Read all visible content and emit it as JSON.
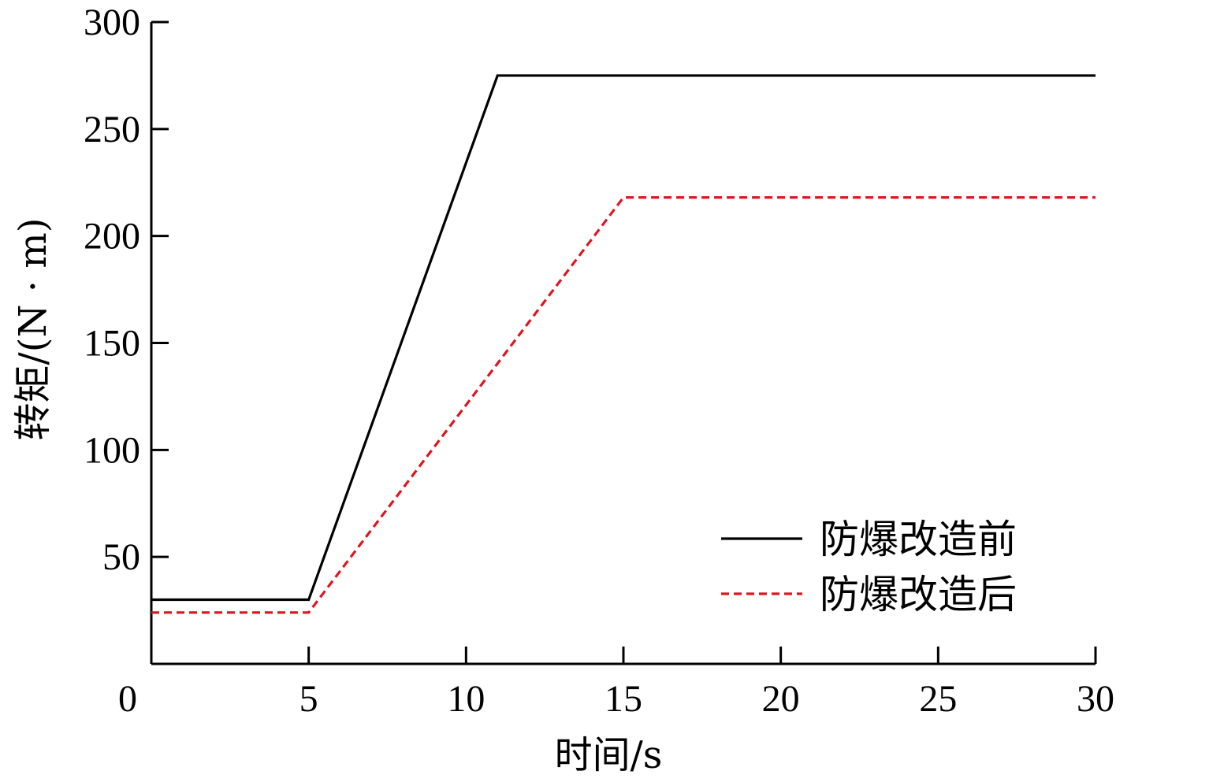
{
  "chart_data": {
    "type": "line",
    "xlabel": "时间/s",
    "ylabel": "转矩/(N · m)",
    "xlim": [
      0,
      30
    ],
    "ylim": [
      0,
      300
    ],
    "x_ticks": [
      0,
      5,
      10,
      15,
      20,
      25,
      30
    ],
    "y_ticks": [
      50,
      100,
      150,
      200,
      250,
      300
    ],
    "grid": false,
    "legend_position": "bottom-right",
    "series": [
      {
        "name": "防爆改造前",
        "color": "#000000",
        "style": "solid",
        "x": [
          0,
          5,
          11,
          30
        ],
        "y": [
          30,
          30,
          275,
          275
        ]
      },
      {
        "name": "防爆改造后",
        "color": "#e0141e",
        "style": "dashed",
        "x": [
          0,
          5,
          15,
          30
        ],
        "y": [
          24,
          24,
          218,
          218
        ]
      }
    ]
  }
}
